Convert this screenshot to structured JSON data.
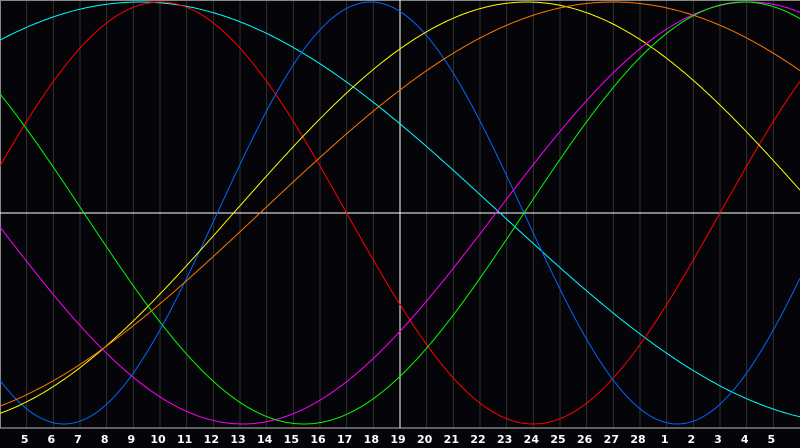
{
  "chart_data": {
    "type": "line",
    "title": "",
    "xlabel": "",
    "ylabel": "",
    "x_tick_labels": [
      "5",
      "6",
      "7",
      "8",
      "9",
      "10",
      "11",
      "12",
      "13",
      "14",
      "15",
      "16",
      "17",
      "18",
      "19",
      "20",
      "21",
      "22",
      "23",
      "24",
      "25",
      "26",
      "27",
      "28",
      "1",
      "2",
      "3",
      "4",
      "5"
    ],
    "highlighted_tick": "19",
    "grid": true,
    "y_range": [
      -1,
      1
    ],
    "series": [
      {
        "color": "#00ffff",
        "period_days": 54,
        "peak_at_tick": 4.25
      },
      {
        "color": "#ff0000",
        "period_days": 28,
        "peak_at_tick": 5.0
      },
      {
        "color": "#0066ff",
        "period_days": 23,
        "peak_at_tick": 12.9
      },
      {
        "color": "#ffff00",
        "period_days": 44,
        "peak_at_tick": 18.76
      },
      {
        "color": "#ff7700",
        "period_days": 53,
        "peak_at_tick": 22.0
      },
      {
        "color": "#ff00ff",
        "period_days": 38,
        "peak_at_tick": 27.1
      },
      {
        "color": "#00ff00",
        "period_days": 33,
        "peak_at_tick": 26.9
      }
    ],
    "background": "#050408",
    "grid_color": "#333333",
    "crosshair_color": "#ffffff"
  }
}
